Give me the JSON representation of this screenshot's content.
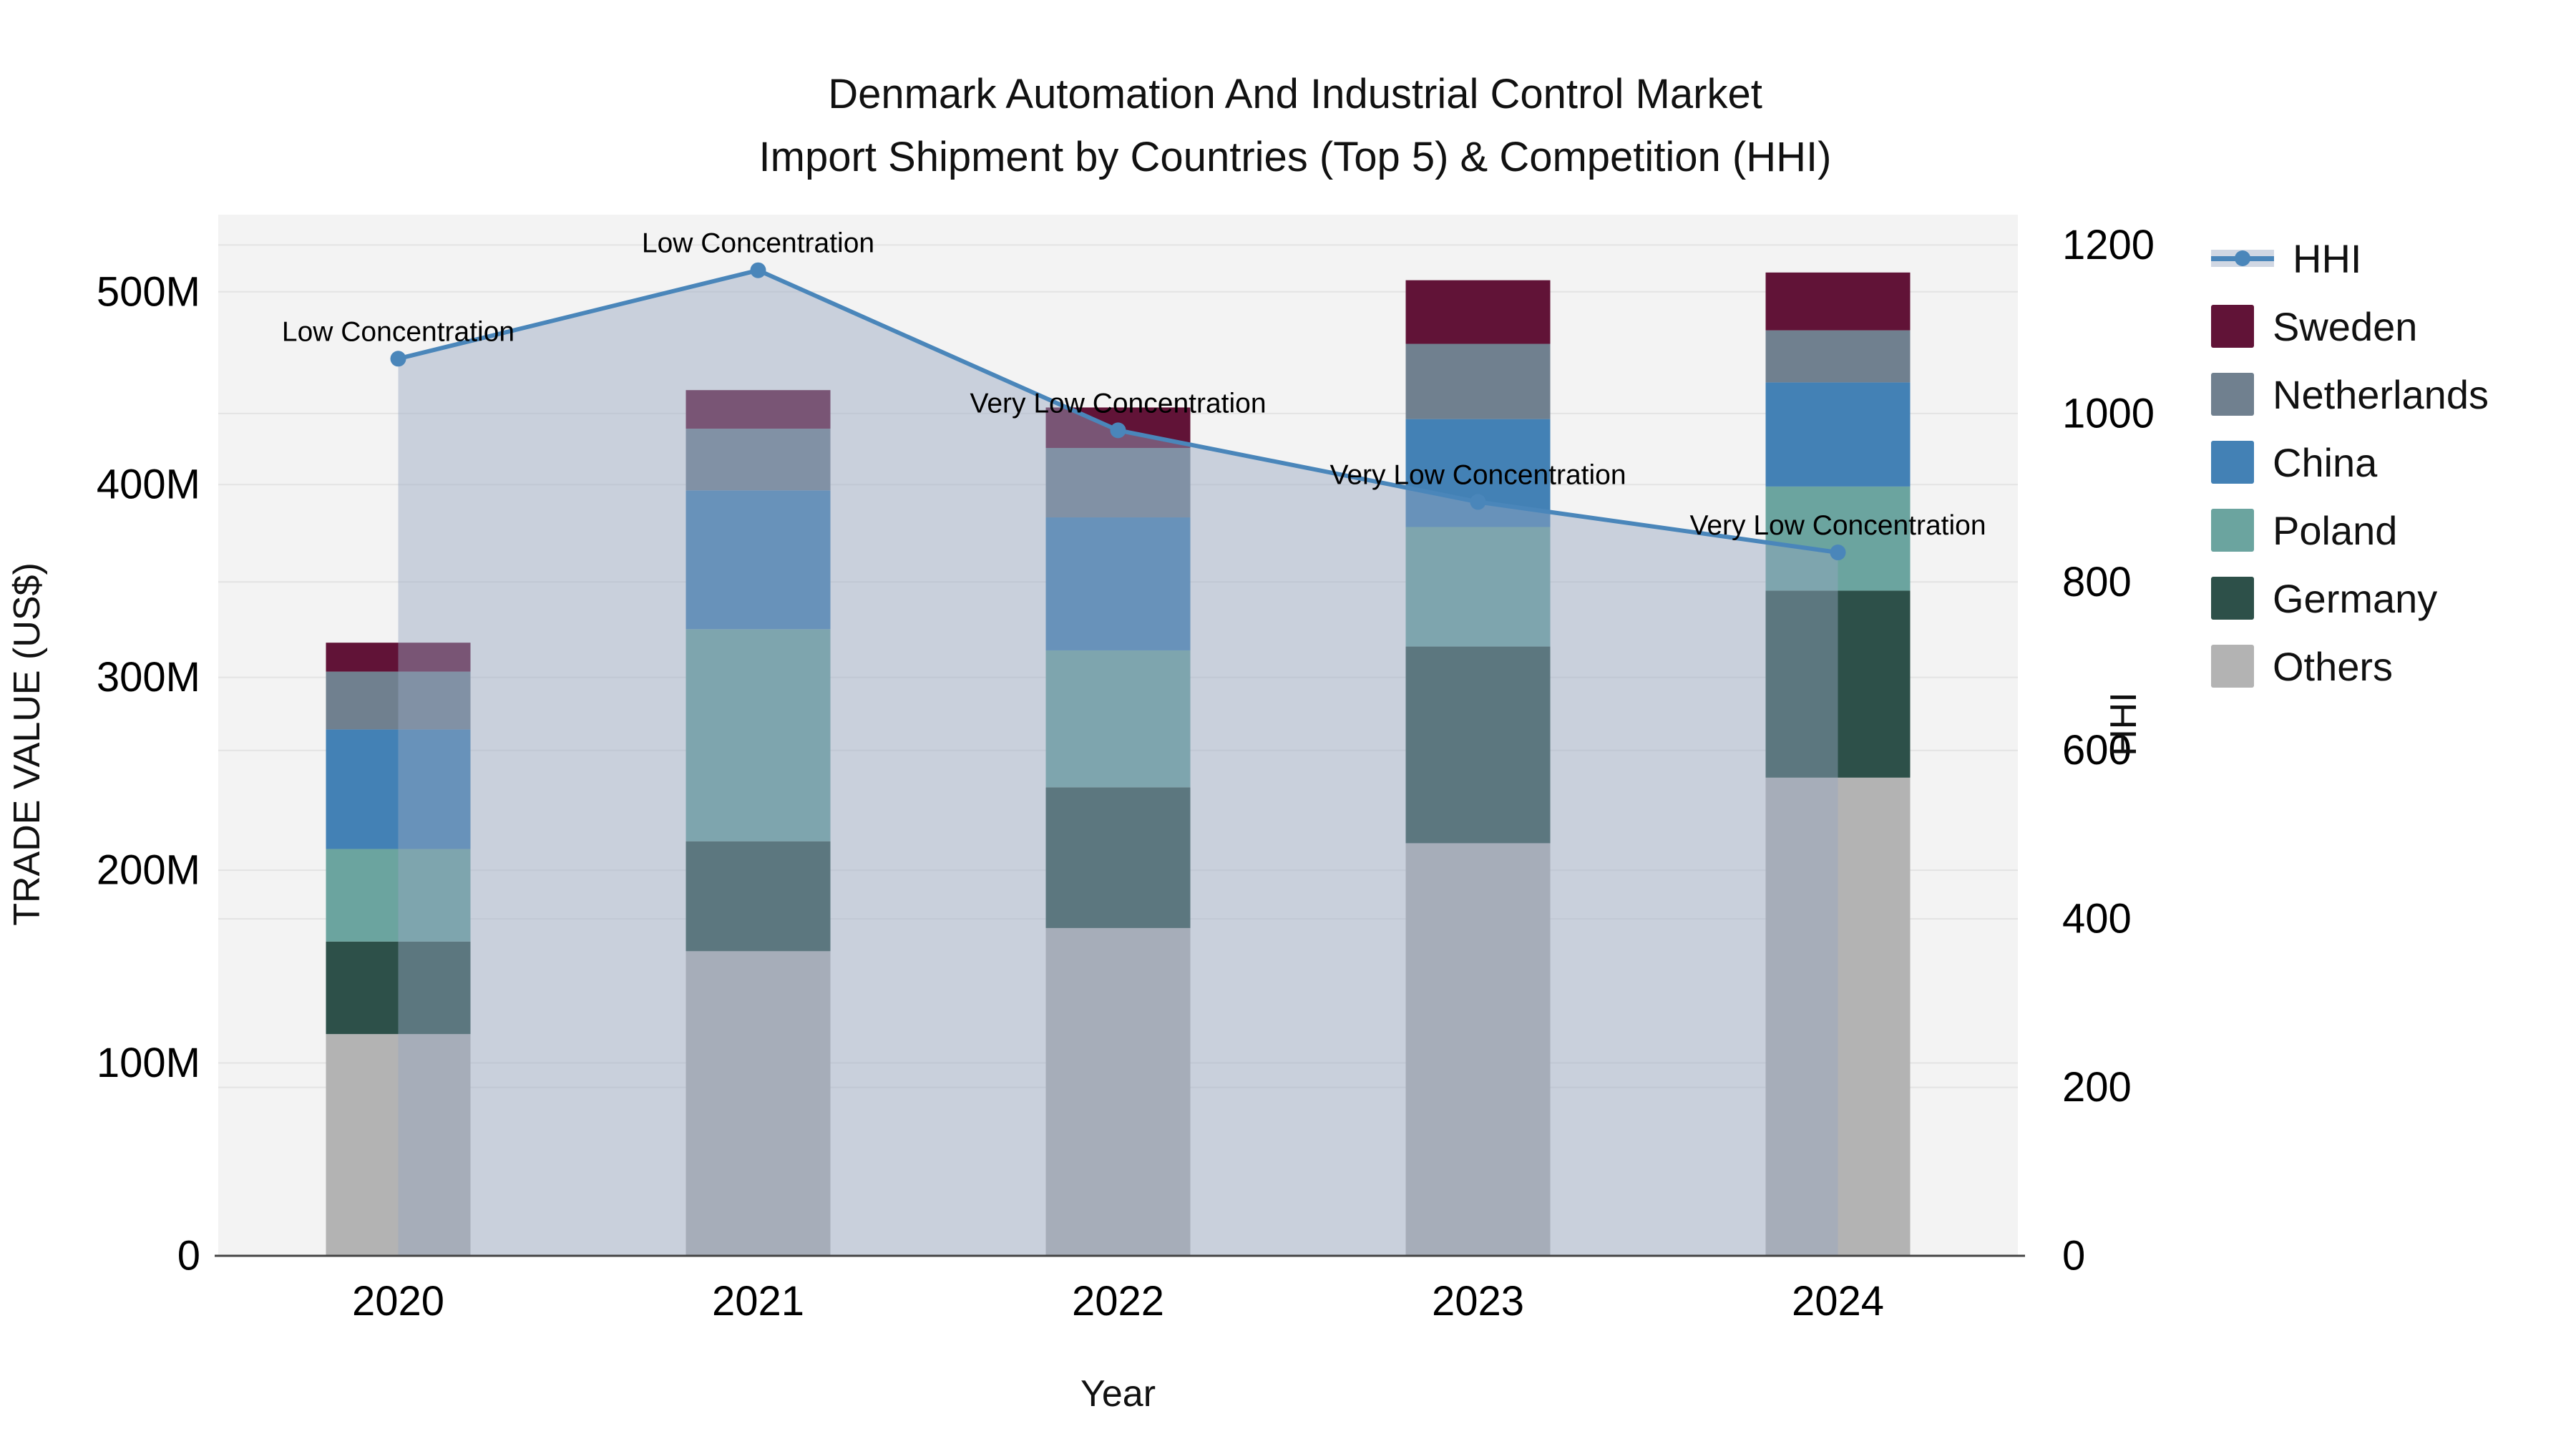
{
  "title": {
    "line1": "Denmark Automation And Industrial Control Market",
    "line2": "Import Shipment by Countries (Top 5) & Competition (HHI)"
  },
  "axes": {
    "x": {
      "title": "Year"
    },
    "y_left": {
      "title": "TRADE VALUE (US$)"
    },
    "y_right": {
      "title": "HHI"
    }
  },
  "legend": {
    "items": [
      {
        "label": "HHI",
        "type": "line",
        "color": "#4a86ba"
      },
      {
        "label": "Sweden",
        "type": "swatch",
        "color": "#611337"
      },
      {
        "label": "Netherlands",
        "type": "swatch",
        "color": "#70808f"
      },
      {
        "label": "China",
        "type": "swatch",
        "color": "#4381b5"
      },
      {
        "label": "Poland",
        "type": "swatch",
        "color": "#6ba49f"
      },
      {
        "label": "Germany",
        "type": "swatch",
        "color": "#2d5049"
      },
      {
        "label": "Others",
        "type": "swatch",
        "color": "#b3b3b3"
      }
    ]
  },
  "chart_data": {
    "type": "bar",
    "subtype": "stacked-bar-with-line",
    "categories": [
      "2020",
      "2021",
      "2022",
      "2023",
      "2024"
    ],
    "series": [
      {
        "name": "Others",
        "color": "#b3b3b3",
        "values": [
          115,
          158,
          170,
          214,
          248
        ]
      },
      {
        "name": "Germany",
        "color": "#2d5049",
        "values": [
          48,
          57,
          73,
          102,
          97
        ]
      },
      {
        "name": "Poland",
        "color": "#6ba49f",
        "values": [
          48,
          110,
          71,
          62,
          54
        ]
      },
      {
        "name": "China",
        "color": "#4381b5",
        "values": [
          62,
          72,
          69,
          56,
          54
        ]
      },
      {
        "name": "Netherlands",
        "color": "#70808f",
        "values": [
          30,
          32,
          36,
          39,
          27
        ]
      },
      {
        "name": "Sweden",
        "color": "#611337",
        "values": [
          15,
          20,
          21,
          33,
          30
        ]
      }
    ],
    "bar_totals": [
      318,
      449,
      440,
      506,
      510
    ],
    "line_series": {
      "name": "HHI",
      "color": "#4a86ba",
      "area_color": "rgba(150,166,192,0.45)",
      "values": [
        1065,
        1170,
        980,
        895,
        835
      ],
      "annotations": [
        "Low Concentration",
        "Low Concentration",
        "Very Low Concentration",
        "Very Low Concentration",
        "Very Low Concentration"
      ]
    },
    "xlabel": "Year",
    "ylabel_left": "TRADE VALUE (US$)",
    "ylabel_right": "HHI",
    "y_left_ticks": [
      0,
      100,
      200,
      300,
      400,
      500
    ],
    "y_left_tick_labels": [
      "0",
      "100M",
      "200M",
      "300M",
      "400M",
      "500M"
    ],
    "y_left_max": 540,
    "y_right_ticks": [
      0,
      200,
      400,
      600,
      800,
      1000,
      1200
    ],
    "y_right_tick_labels": [
      "0",
      "200",
      "400",
      "600",
      "800",
      "1000",
      "1200"
    ],
    "y_right_max": 1236,
    "grid": true,
    "legend_position": "right",
    "plot_bg": "#f3f3f3",
    "grid_color": "#e3e3e3",
    "axis_line_color": "#444444",
    "tick_color": "#000000"
  }
}
